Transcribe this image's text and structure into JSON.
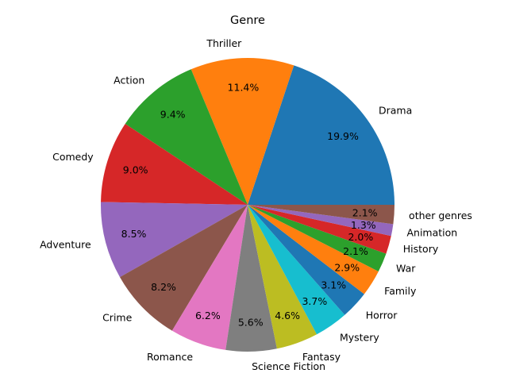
{
  "chart_data": {
    "type": "pie",
    "title": "Genre",
    "start_angle_deg": 0,
    "direction": "counterclockwise",
    "slices": [
      {
        "label": "Drama",
        "value": 19.9,
        "pct_label": "19.9%",
        "color": "#1f77b4"
      },
      {
        "label": "Thriller",
        "value": 11.4,
        "pct_label": "11.4%",
        "color": "#ff7f0e"
      },
      {
        "label": "Action",
        "value": 9.4,
        "pct_label": "9.4%",
        "color": "#2ca02c"
      },
      {
        "label": "Comedy",
        "value": 9.0,
        "pct_label": "9.0%",
        "color": "#d62728"
      },
      {
        "label": "Adventure",
        "value": 8.5,
        "pct_label": "8.5%",
        "color": "#9467bd"
      },
      {
        "label": "Crime",
        "value": 8.2,
        "pct_label": "8.2%",
        "color": "#8c564b"
      },
      {
        "label": "Romance",
        "value": 6.2,
        "pct_label": "6.2%",
        "color": "#e377c2"
      },
      {
        "label": "Science Fiction",
        "value": 5.6,
        "pct_label": "5.6%",
        "color": "#7f7f7f"
      },
      {
        "label": "Fantasy",
        "value": 4.6,
        "pct_label": "4.6%",
        "color": "#bcbd22"
      },
      {
        "label": "Mystery",
        "value": 3.7,
        "pct_label": "3.7%",
        "color": "#17becf"
      },
      {
        "label": "Horror",
        "value": 3.1,
        "pct_label": "3.1%",
        "color": "#1f77b4"
      },
      {
        "label": "Family",
        "value": 2.9,
        "pct_label": "2.9%",
        "color": "#ff7f0e"
      },
      {
        "label": "War",
        "value": 2.1,
        "pct_label": "2.1%",
        "color": "#2ca02c"
      },
      {
        "label": "History",
        "value": 2.0,
        "pct_label": "2.0%",
        "color": "#d62728"
      },
      {
        "label": "Animation",
        "value": 1.3,
        "pct_label": "1.3%",
        "color": "#9467bd"
      },
      {
        "label": "other genres",
        "value": 2.1,
        "pct_label": "2.1%",
        "color": "#8c564b"
      }
    ]
  }
}
